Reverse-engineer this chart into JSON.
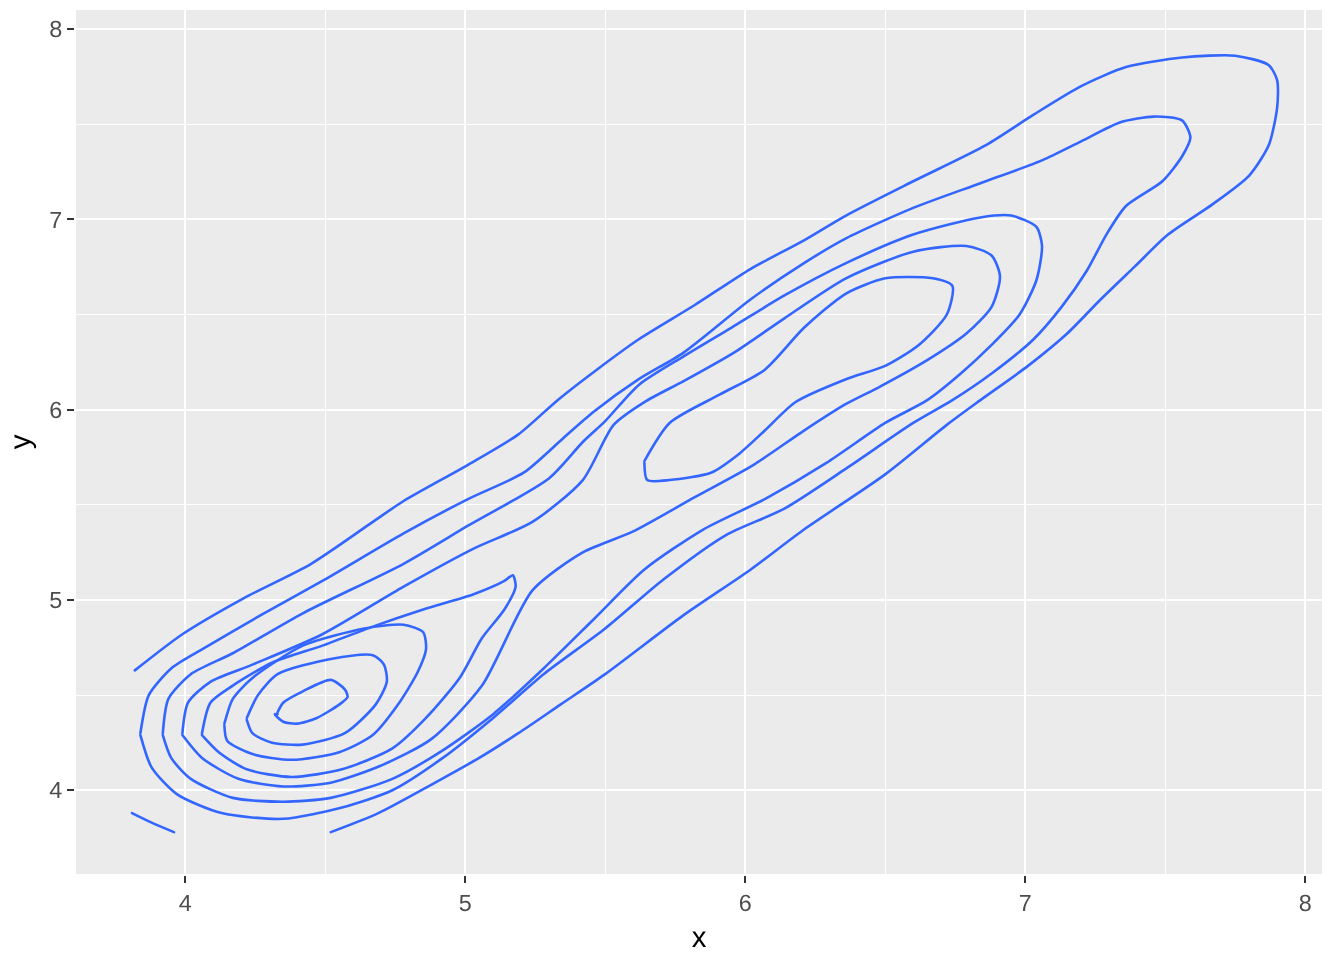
{
  "chart_data": {
    "type": "line",
    "xlabel": "x",
    "ylabel": "y",
    "xlim": [
      3.61,
      8.06
    ],
    "ylim": [
      3.56,
      8.1
    ],
    "xticks": [
      4,
      5,
      6,
      7,
      8
    ],
    "yticks": [
      4,
      5,
      6,
      7,
      8
    ],
    "grid": true,
    "series": [
      {
        "color": "#3366ff",
        "x": [
          3.82,
          3.99,
          4.21,
          4.45,
          4.67,
          4.78,
          5.01,
          5.19,
          5.33,
          5.47,
          5.62,
          5.82,
          6.02,
          6.21,
          6.36,
          6.6,
          6.86,
          7.03,
          7.2,
          7.36,
          7.56,
          7.75,
          7.87,
          7.9,
          7.9,
          7.87,
          7.8,
          7.67,
          7.51,
          7.39,
          7.27,
          7.15,
          7.01,
          6.84,
          6.72,
          6.5,
          6.21,
          6.02,
          5.78,
          5.5,
          5.34,
          5.19,
          5.05,
          4.88,
          4.69,
          4.52
        ],
        "values": [
          4.63,
          4.82,
          5.01,
          5.19,
          5.41,
          5.52,
          5.71,
          5.87,
          6.05,
          6.21,
          6.37,
          6.55,
          6.74,
          6.89,
          7.02,
          7.2,
          7.39,
          7.55,
          7.7,
          7.8,
          7.85,
          7.86,
          7.81,
          7.73,
          7.59,
          7.39,
          7.23,
          7.08,
          6.92,
          6.75,
          6.58,
          6.4,
          6.23,
          6.05,
          5.92,
          5.66,
          5.37,
          5.16,
          4.92,
          4.61,
          4.45,
          4.3,
          4.17,
          4.03,
          3.88,
          3.78
        ]
      },
      {
        "color": "#3366ff",
        "x": [
          3.81,
          3.88,
          3.96
        ],
        "values": [
          3.88,
          3.83,
          3.78
        ]
      },
      {
        "color": "#3366ff",
        "x": [
          3.84,
          3.87,
          3.95,
          4.06,
          4.27,
          4.49,
          4.78,
          5.01,
          5.21,
          5.35,
          5.46,
          5.62,
          5.78,
          6.02,
          6.21,
          6.36,
          6.6,
          6.84,
          7.06,
          7.2,
          7.34,
          7.46,
          7.56,
          7.59,
          7.56,
          7.49,
          7.36,
          7.29,
          7.22,
          7.13,
          7.03,
          6.88,
          6.74,
          6.6,
          6.36,
          6.14,
          5.93,
          5.71,
          5.5,
          5.28,
          5.1,
          4.92,
          4.74,
          4.56,
          4.35,
          4.13,
          3.97,
          3.88,
          3.84
        ],
        "values": [
          4.3,
          4.5,
          4.64,
          4.74,
          4.92,
          5.1,
          5.35,
          5.53,
          5.67,
          5.85,
          5.99,
          6.16,
          6.3,
          6.58,
          6.77,
          6.9,
          7.06,
          7.19,
          7.31,
          7.41,
          7.51,
          7.54,
          7.52,
          7.43,
          7.33,
          7.2,
          7.07,
          6.92,
          6.73,
          6.54,
          6.37,
          6.19,
          6.05,
          5.93,
          5.69,
          5.48,
          5.34,
          5.11,
          4.85,
          4.61,
          4.38,
          4.17,
          4.0,
          3.91,
          3.85,
          3.88,
          3.98,
          4.12,
          4.29
        ]
      },
      {
        "color": "#3366ff",
        "x": [
          3.92,
          3.94,
          4.02,
          4.17,
          4.42,
          4.78,
          5.01,
          5.3,
          5.42,
          5.5,
          5.62,
          5.78,
          5.95,
          6.14,
          6.36,
          6.6,
          6.84,
          6.95,
          7.04,
          7.06,
          7.04,
          6.98,
          6.88,
          6.77,
          6.65,
          6.5,
          6.29,
          6.07,
          5.85,
          5.64,
          5.46,
          5.28,
          5.1,
          4.92,
          4.74,
          4.52,
          4.35,
          4.17,
          4.02,
          3.95,
          3.92
        ],
        "values": [
          4.3,
          4.48,
          4.61,
          4.72,
          4.93,
          5.19,
          5.39,
          5.64,
          5.83,
          5.94,
          6.13,
          6.28,
          6.43,
          6.6,
          6.77,
          6.92,
          7.01,
          7.02,
          6.96,
          6.86,
          6.68,
          6.5,
          6.34,
          6.19,
          6.05,
          5.93,
          5.72,
          5.53,
          5.37,
          5.16,
          4.9,
          4.64,
          4.4,
          4.21,
          4.06,
          3.96,
          3.94,
          3.96,
          4.06,
          4.17,
          4.29
        ]
      },
      {
        "color": "#3366ff",
        "x": [
          3.99,
          4.01,
          4.09,
          4.24,
          4.49,
          4.78,
          5.03,
          5.24,
          5.42,
          5.53,
          5.64,
          5.78,
          5.96,
          6.14,
          6.36,
          6.6,
          6.79,
          6.88,
          6.91,
          6.88,
          6.79,
          6.65,
          6.48,
          6.36,
          6.21,
          6.03,
          5.82,
          5.6,
          5.42,
          5.24,
          5.06,
          4.88,
          4.7,
          4.52,
          4.35,
          4.19,
          4.06,
          3.99
        ],
        "values": [
          4.3,
          4.46,
          4.57,
          4.66,
          4.82,
          5.07,
          5.27,
          5.41,
          5.63,
          5.92,
          6.04,
          6.15,
          6.3,
          6.48,
          6.69,
          6.83,
          6.86,
          6.81,
          6.7,
          6.54,
          6.4,
          6.26,
          6.12,
          6.03,
          5.89,
          5.71,
          5.54,
          5.36,
          5.25,
          5.05,
          4.55,
          4.27,
          4.13,
          4.04,
          4.02,
          4.06,
          4.17,
          4.29
        ]
      },
      {
        "color": "#3366ff",
        "x": [
          4.06,
          4.09,
          4.17,
          4.31,
          4.49,
          4.67,
          4.85,
          5.03,
          5.14,
          5.17,
          5.18,
          5.14,
          5.06,
          4.98,
          4.86,
          4.74,
          4.56,
          4.38,
          4.22,
          4.12,
          4.06
        ],
        "values": [
          4.3,
          4.46,
          4.55,
          4.67,
          4.76,
          4.86,
          4.95,
          5.03,
          5.1,
          5.13,
          5.07,
          4.95,
          4.8,
          4.59,
          4.38,
          4.22,
          4.11,
          4.07,
          4.11,
          4.2,
          4.29
        ]
      },
      {
        "color": "#3366ff",
        "x": [
          5.64,
          5.65,
          5.73,
          5.88,
          5.98,
          6.07,
          6.18,
          6.36,
          6.5,
          6.62,
          6.72,
          6.74,
          6.67,
          6.5,
          6.36,
          6.21,
          6.07,
          5.91,
          5.73,
          5.64
        ],
        "values": [
          5.72,
          5.63,
          5.63,
          5.67,
          5.77,
          5.89,
          6.04,
          6.16,
          6.23,
          6.34,
          6.5,
          6.65,
          6.69,
          6.69,
          6.61,
          6.43,
          6.21,
          6.08,
          5.93,
          5.73
        ]
      },
      {
        "color": "#3366ff",
        "x": [
          4.14,
          4.17,
          4.24,
          4.42,
          4.64,
          4.78,
          4.85,
          4.86,
          4.83,
          4.76,
          4.67,
          4.55,
          4.38,
          4.24,
          4.15,
          4.14
        ],
        "values": [
          4.35,
          4.48,
          4.59,
          4.76,
          4.85,
          4.87,
          4.83,
          4.74,
          4.62,
          4.45,
          4.29,
          4.2,
          4.16,
          4.19,
          4.26,
          4.34
        ]
      },
      {
        "color": "#3366ff",
        "x": [
          4.22,
          4.26,
          4.33,
          4.52,
          4.67,
          4.71,
          4.72,
          4.68,
          4.57,
          4.42,
          4.31,
          4.24,
          4.22
        ],
        "values": [
          4.38,
          4.5,
          4.61,
          4.69,
          4.71,
          4.66,
          4.57,
          4.45,
          4.3,
          4.24,
          4.25,
          4.3,
          4.37
        ]
      },
      {
        "color": "#3366ff",
        "x": [
          4.33,
          4.35,
          4.42,
          4.52,
          4.57,
          4.58,
          4.55,
          4.47,
          4.4,
          4.35,
          4.32,
          4.33
        ],
        "values": [
          4.41,
          4.46,
          4.52,
          4.58,
          4.53,
          4.49,
          4.45,
          4.38,
          4.35,
          4.36,
          4.4,
          4.4
        ]
      }
    ]
  }
}
